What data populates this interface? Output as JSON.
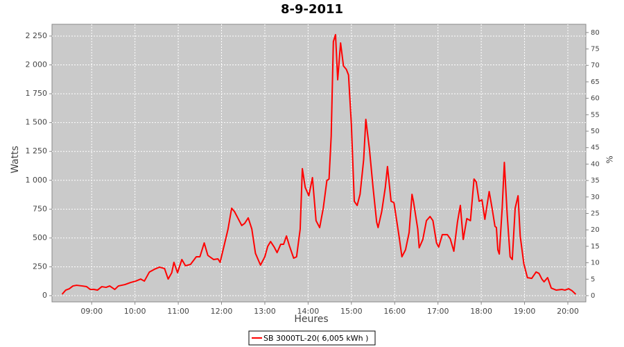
{
  "chart_data": {
    "type": "line",
    "title": "8-9-2011",
    "x_label": "Heures",
    "y_label": "Watts",
    "y2_label": "%",
    "x": [
      499,
      504,
      509,
      514,
      519,
      527,
      533,
      538,
      543,
      548,
      554,
      560,
      565,
      572,
      577,
      586,
      594,
      601,
      608,
      613,
      620,
      627,
      634,
      641,
      646,
      651,
      654,
      659,
      665,
      670,
      677,
      685,
      690,
      696,
      701,
      709,
      715,
      718,
      724,
      729,
      734,
      738,
      743,
      748,
      752,
      757,
      762,
      767,
      774,
      780,
      784,
      788,
      793,
      797,
      802,
      806,
      810,
      814,
      820,
      824,
      829,
      832,
      836,
      841,
      846,
      851,
      856,
      861,
      866,
      869,
      872,
      875,
      878,
      881,
      885,
      889,
      893,
      896,
      900,
      904,
      908,
      912,
      917,
      920,
      925,
      930,
      935,
      937,
      942,
      947,
      950,
      955,
      959,
      966,
      970,
      975,
      980,
      984,
      986,
      992,
      994,
      999,
      1004,
      1009,
      1013,
      1018,
      1021,
      1026,
      1033,
      1037,
      1042,
      1047,
      1051,
      1055,
      1060,
      1065,
      1070,
      1073,
      1077,
      1081,
      1085,
      1091,
      1095,
      1099,
      1101,
      1103,
      1105,
      1109,
      1112,
      1116,
      1120,
      1123,
      1127,
      1131,
      1134,
      1139,
      1144,
      1150,
      1156,
      1160,
      1164,
      1167,
      1172,
      1177,
      1184,
      1192,
      1196,
      1201,
      1206,
      1211
    ],
    "series": [
      {
        "name": "SB 3000TL-20( 6,005 kWh )",
        "color": "#ff0000",
        "values": [
          12,
          48,
          60,
          84,
          90,
          84,
          78,
          54,
          54,
          48,
          78,
          72,
          84,
          54,
          84,
          96,
          114,
          126,
          144,
          126,
          205,
          229,
          247,
          235,
          144,
          199,
          289,
          199,
          313,
          259,
          271,
          337,
          337,
          457,
          349,
          313,
          319,
          289,
          445,
          577,
          758,
          728,
          668,
          608,
          626,
          674,
          577,
          367,
          265,
          337,
          427,
          469,
          421,
          373,
          445,
          445,
          517,
          433,
          325,
          337,
          577,
          1101,
          938,
          866,
          1023,
          650,
          590,
          758,
          998,
          1011,
          1384,
          2202,
          2262,
          1871,
          2190,
          1991,
          1961,
          1913,
          1480,
          818,
          782,
          878,
          1179,
          1528,
          1270,
          938,
          638,
          590,
          728,
          938,
          1119,
          818,
          806,
          517,
          337,
          397,
          547,
          878,
          818,
          577,
          415,
          487,
          650,
          686,
          650,
          457,
          421,
          529,
          529,
          493,
          385,
          638,
          782,
          487,
          668,
          650,
          1011,
          986,
          818,
          830,
          662,
          902,
          758,
          601,
          590,
          397,
          361,
          758,
          1155,
          698,
          337,
          313,
          758,
          866,
          517,
          277,
          156,
          150,
          205,
          193,
          144,
          120,
          156,
          66,
          48,
          54,
          48,
          60,
          42,
          12
        ]
      }
    ],
    "xlim": [
      485,
      1225
    ],
    "xticks": [
      {
        "value": 540,
        "label": "09:00"
      },
      {
        "value": 600,
        "label": "10:00"
      },
      {
        "value": 660,
        "label": "11:00"
      },
      {
        "value": 720,
        "label": "12:00"
      },
      {
        "value": 780,
        "label": "13:00"
      },
      {
        "value": 840,
        "label": "14:00"
      },
      {
        "value": 900,
        "label": "15:00"
      },
      {
        "value": 960,
        "label": "16:00"
      },
      {
        "value": 1020,
        "label": "17:00"
      },
      {
        "value": 1080,
        "label": "18:00"
      },
      {
        "value": 1140,
        "label": "19:00"
      },
      {
        "value": 1200,
        "label": "20:00"
      }
    ],
    "ylim": [
      -54,
      2352
    ],
    "yticks": [
      0,
      250,
      500,
      750,
      {
        "value": 1000,
        "label": "1 000"
      },
      {
        "value": 1250,
        "label": "1 250"
      },
      {
        "value": 1500,
        "label": "1 500"
      },
      {
        "value": 1750,
        "label": "1 750"
      },
      {
        "value": 2000,
        "label": "2 000"
      },
      {
        "value": 2250,
        "label": "2 250"
      }
    ],
    "y2lim": [
      -1.9,
      82.5
    ],
    "y2ticks": [
      0,
      5,
      10,
      15,
      20,
      25,
      30,
      35,
      40,
      45,
      50,
      55,
      60,
      65,
      70,
      75,
      80
    ],
    "grid": true,
    "legend": "bottom"
  }
}
